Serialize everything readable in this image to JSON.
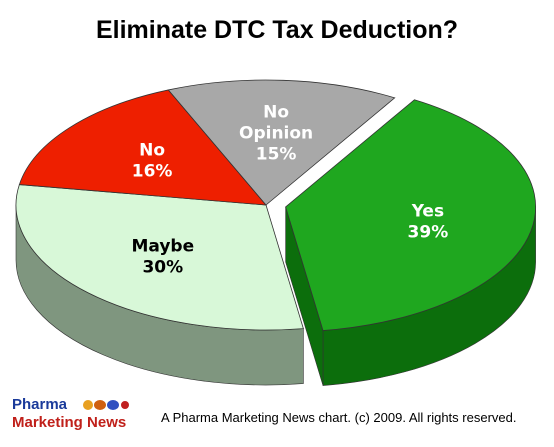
{
  "chart_data": {
    "type": "pie",
    "title": "Eliminate DTC Tax Deduction?",
    "slices": [
      {
        "label_lines": [
          "Yes"
        ],
        "value": 39,
        "value_label": "39%",
        "color": "#1fa71f",
        "side_color": "#0c6e0c",
        "text_color": "#ffffff"
      },
      {
        "label_lines": [
          "Maybe"
        ],
        "value": 30,
        "value_label": "30%",
        "color": "#d8f8d8",
        "side_color": "#7f967f",
        "text_color": "#000000"
      },
      {
        "label_lines": [
          "No"
        ],
        "value": 16,
        "value_label": "16%",
        "color": "#ee1f00",
        "side_color": "#901400",
        "text_color": "#ffffff"
      },
      {
        "label_lines": [
          "No",
          "Opinion"
        ],
        "value": 15,
        "value_label": "15%",
        "color": "#a8a8a8",
        "side_color": "#6a6a6a",
        "text_color": "#ffffff"
      }
    ]
  },
  "logo": {
    "line1": "Pharma",
    "line2": "Marketing News"
  },
  "footer": "A Pharma Marketing News chart. (c) 2009. All rights reserved."
}
